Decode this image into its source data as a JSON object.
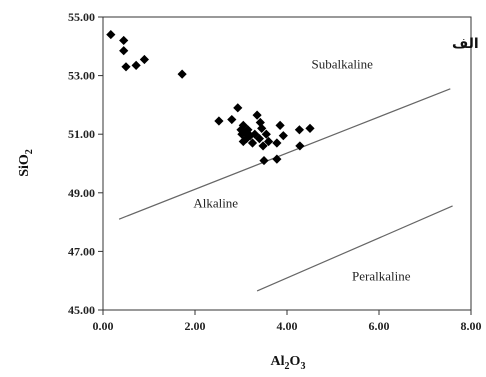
{
  "chart_data": {
    "type": "scatter",
    "title": "",
    "panel_label": "الف",
    "xlim": [
      0,
      8
    ],
    "ylim": [
      45,
      55
    ],
    "x_ticks": [
      "0.00",
      "2.00",
      "4.00",
      "6.00",
      "8.00"
    ],
    "y_ticks": [
      "45.00",
      "47.00",
      "49.00",
      "51.00",
      "53.00",
      "55.00"
    ],
    "xlabel": {
      "base": "Al",
      "sub1": "2",
      "mid": "O",
      "sub2": "3"
    },
    "ylabel": {
      "base": "SiO",
      "sub": "2"
    },
    "grid": false,
    "legend": "none",
    "marker": "diamond",
    "marker_color": "#000000",
    "series": [
      {
        "points": [
          [
            0.17,
            54.4
          ],
          [
            0.45,
            54.2
          ],
          [
            0.45,
            53.85
          ],
          [
            0.5,
            53.3
          ],
          [
            0.72,
            53.35
          ],
          [
            0.9,
            53.55
          ],
          [
            1.72,
            53.05
          ],
          [
            2.52,
            51.45
          ],
          [
            2.8,
            51.5
          ],
          [
            2.93,
            51.9
          ],
          [
            3.05,
            51.3
          ],
          [
            3.0,
            51.15
          ],
          [
            3.02,
            51.0
          ],
          [
            3.05,
            50.75
          ],
          [
            3.1,
            51.05
          ],
          [
            3.12,
            50.85
          ],
          [
            3.15,
            51.15
          ],
          [
            3.2,
            50.95
          ],
          [
            3.25,
            50.7
          ],
          [
            3.3,
            51.0
          ],
          [
            3.35,
            51.65
          ],
          [
            3.42,
            51.4
          ],
          [
            3.45,
            51.2
          ],
          [
            3.4,
            50.85
          ],
          [
            3.48,
            50.6
          ],
          [
            3.5,
            50.1
          ],
          [
            3.55,
            51.0
          ],
          [
            3.6,
            50.75
          ],
          [
            3.78,
            50.7
          ],
          [
            3.78,
            50.15
          ],
          [
            3.85,
            51.3
          ],
          [
            3.92,
            50.95
          ],
          [
            4.27,
            51.15
          ],
          [
            4.28,
            50.6
          ],
          [
            4.5,
            51.2
          ]
        ]
      }
    ],
    "boundary_lines": [
      {
        "from": [
          0.35,
          48.1
        ],
        "to": [
          7.55,
          52.55
        ]
      },
      {
        "from": [
          3.35,
          45.65
        ],
        "to": [
          7.6,
          48.55
        ]
      }
    ],
    "annotations": [
      {
        "text": "Subalkaline",
        "x": 5.2,
        "y": 53.25
      },
      {
        "text": "Alkaline",
        "x": 2.45,
        "y": 48.5
      },
      {
        "text": "Peralkaline",
        "x": 6.05,
        "y": 46.0
      }
    ]
  }
}
